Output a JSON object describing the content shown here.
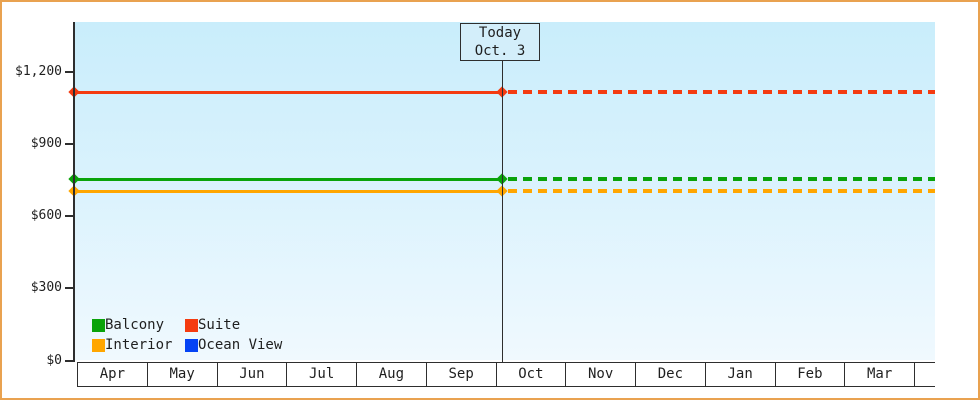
{
  "frame": {
    "border_color": "#e9a250",
    "background_color": "#ffffff",
    "plot_gradient_top": "#c9edfb",
    "plot_gradient_bottom": "#f0f9fe"
  },
  "today_flag": {
    "line1": "Today",
    "line2": "Oct. 3"
  },
  "chart_data": {
    "type": "line",
    "title": "",
    "x_categories": [
      "Apr",
      "May",
      "Jun",
      "Jul",
      "Aug",
      "Sep",
      "Oct",
      "Nov",
      "Dec",
      "Jan",
      "Feb",
      "Mar"
    ],
    "y_axis": {
      "ticks": [
        {
          "label": "$0",
          "value": 0
        },
        {
          "label": "$300",
          "value": 300
        },
        {
          "label": "$600",
          "value": 600
        },
        {
          "label": "$900",
          "value": 900
        },
        {
          "label": "$1,200",
          "value": 1200
        }
      ],
      "range": [
        0,
        1410
      ]
    },
    "today": {
      "month": "Oct",
      "day": 3
    },
    "line_style": {
      "before_today": "solid",
      "after_today": "dashed",
      "marker": "diamond"
    },
    "grid": false,
    "series": [
      {
        "name": "Suite",
        "color": "#f43b10",
        "value": 1115,
        "visible": true
      },
      {
        "name": "Balcony",
        "color": "#0aa30a",
        "value": 757,
        "visible": true
      },
      {
        "name": "Interior",
        "color": "#ffa600",
        "value": 703,
        "visible": true
      },
      {
        "name": "Ocean View",
        "color": "#0443f5",
        "value": null,
        "visible": false
      }
    ],
    "legend": {
      "position": "bottom-left",
      "items": [
        {
          "label": "Balcony",
          "color": "#0aa30a"
        },
        {
          "label": "Suite",
          "color": "#f43b10"
        },
        {
          "label": "Interior",
          "color": "#ffa600"
        },
        {
          "label": "Ocean View",
          "color": "#0443f5"
        }
      ]
    }
  }
}
